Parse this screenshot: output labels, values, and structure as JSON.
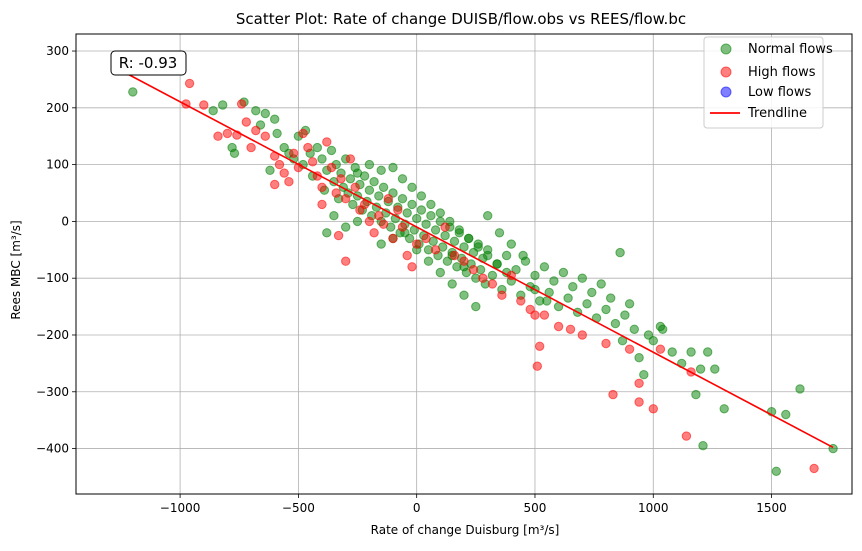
{
  "chart_data": {
    "type": "scatter",
    "title": "Scatter Plot: Rate of change DUISB/flow.obs vs REES/flow.bc",
    "xlabel": "Rate of change Duisburg [m³/s]",
    "ylabel": "Rees MBC [m³/s]",
    "xlim": [
      -1440,
      1840
    ],
    "ylim": [
      -480,
      330
    ],
    "xticks": [
      -1000,
      -500,
      0,
      500,
      1000,
      1500
    ],
    "xtick_labels": [
      "−1000",
      "−500",
      "0",
      "500",
      "1000",
      "1500"
    ],
    "yticks": [
      -400,
      -300,
      -200,
      -100,
      0,
      100,
      200,
      300
    ],
    "ytick_labels": [
      "−400",
      "−300",
      "−200",
      "−100",
      "0",
      "100",
      "200",
      "300"
    ],
    "grid": true,
    "legend_position": "top-right",
    "annotation": "R: -0.93",
    "colors": {
      "normal": "#008000",
      "high": "#ff0000",
      "low": "#0000ff",
      "trend": "#ff0000"
    },
    "series": [
      {
        "name": "Normal flows",
        "points": [
          [
            -1200,
            228
          ],
          [
            -860,
            195
          ],
          [
            -820,
            205
          ],
          [
            -780,
            130
          ],
          [
            -770,
            120
          ],
          [
            -730,
            210
          ],
          [
            -680,
            195
          ],
          [
            -660,
            170
          ],
          [
            -640,
            190
          ],
          [
            -620,
            90
          ],
          [
            -600,
            180
          ],
          [
            -590,
            155
          ],
          [
            -560,
            130
          ],
          [
            -540,
            120
          ],
          [
            -520,
            110
          ],
          [
            -500,
            150
          ],
          [
            -480,
            100
          ],
          [
            -470,
            160
          ],
          [
            -450,
            120
          ],
          [
            -440,
            80
          ],
          [
            -420,
            130
          ],
          [
            -400,
            110
          ],
          [
            -390,
            55
          ],
          [
            -380,
            90
          ],
          [
            -360,
            125
          ],
          [
            -350,
            70
          ],
          [
            -340,
            100
          ],
          [
            -330,
            40
          ],
          [
            -320,
            85
          ],
          [
            -310,
            60
          ],
          [
            -300,
            110
          ],
          [
            -290,
            50
          ],
          [
            -280,
            75
          ],
          [
            -270,
            30
          ],
          [
            -260,
            95
          ],
          [
            -250,
            45
          ],
          [
            -240,
            65
          ],
          [
            -230,
            20
          ],
          [
            -220,
            80
          ],
          [
            -210,
            35
          ],
          [
            -200,
            55
          ],
          [
            -190,
            10
          ],
          [
            -180,
            70
          ],
          [
            -170,
            25
          ],
          [
            -160,
            45
          ],
          [
            -150,
            0
          ],
          [
            -140,
            60
          ],
          [
            -130,
            15
          ],
          [
            -120,
            35
          ],
          [
            -110,
            -10
          ],
          [
            -100,
            50
          ],
          [
            -90,
            5
          ],
          [
            -80,
            25
          ],
          [
            -70,
            -20
          ],
          [
            -60,
            40
          ],
          [
            -50,
            -5
          ],
          [
            -40,
            15
          ],
          [
            -30,
            -30
          ],
          [
            -20,
            30
          ],
          [
            -10,
            -15
          ],
          [
            0,
            5
          ],
          [
            10,
            -40
          ],
          [
            20,
            20
          ],
          [
            30,
            -25
          ],
          [
            40,
            -5
          ],
          [
            50,
            -50
          ],
          [
            60,
            10
          ],
          [
            70,
            -35
          ],
          [
            80,
            -15
          ],
          [
            90,
            -60
          ],
          [
            100,
            0
          ],
          [
            110,
            -45
          ],
          [
            120,
            -25
          ],
          [
            130,
            -70
          ],
          [
            140,
            -10
          ],
          [
            150,
            -55
          ],
          [
            160,
            -35
          ],
          [
            170,
            -80
          ],
          [
            180,
            -20
          ],
          [
            190,
            -65
          ],
          [
            200,
            -45
          ],
          [
            210,
            -90
          ],
          [
            220,
            -30
          ],
          [
            230,
            -75
          ],
          [
            240,
            -55
          ],
          [
            250,
            -100
          ],
          [
            260,
            -40
          ],
          [
            270,
            -85
          ],
          [
            280,
            -65
          ],
          [
            290,
            -110
          ],
          [
            300,
            -50
          ],
          [
            320,
            -95
          ],
          [
            340,
            -75
          ],
          [
            360,
            -120
          ],
          [
            380,
            -60
          ],
          [
            400,
            -105
          ],
          [
            420,
            -85
          ],
          [
            440,
            -130
          ],
          [
            460,
            -70
          ],
          [
            480,
            -115
          ],
          [
            500,
            -95
          ],
          [
            520,
            -140
          ],
          [
            540,
            -80
          ],
          [
            560,
            -125
          ],
          [
            580,
            -105
          ],
          [
            600,
            -150
          ],
          [
            620,
            -90
          ],
          [
            640,
            -135
          ],
          [
            660,
            -115
          ],
          [
            680,
            -160
          ],
          [
            700,
            -100
          ],
          [
            720,
            -145
          ],
          [
            740,
            -125
          ],
          [
            760,
            -170
          ],
          [
            780,
            -110
          ],
          [
            800,
            -155
          ],
          [
            820,
            -135
          ],
          [
            840,
            -180
          ],
          [
            860,
            -55
          ],
          [
            880,
            -165
          ],
          [
            900,
            -145
          ],
          [
            920,
            -190
          ],
          [
            940,
            -240
          ],
          [
            960,
            -270
          ],
          [
            980,
            -200
          ],
          [
            1000,
            -210
          ],
          [
            1040,
            -190
          ],
          [
            1080,
            -230
          ],
          [
            1120,
            -250
          ],
          [
            1160,
            -230
          ],
          [
            1200,
            -260
          ],
          [
            1230,
            -230
          ],
          [
            1260,
            -260
          ],
          [
            1300,
            -330
          ],
          [
            1500,
            -335
          ],
          [
            1520,
            -440
          ],
          [
            1560,
            -340
          ],
          [
            1620,
            -295
          ],
          [
            1760,
            -400
          ],
          [
            1210,
            -395
          ],
          [
            1180,
            -305
          ],
          [
            1030,
            -185
          ],
          [
            870,
            -210
          ],
          [
            -100,
            95
          ],
          [
            -60,
            75
          ],
          [
            -20,
            60
          ],
          [
            20,
            45
          ],
          [
            60,
            30
          ],
          [
            100,
            15
          ],
          [
            140,
            0
          ],
          [
            180,
            -15
          ],
          [
            220,
            -30
          ],
          [
            260,
            -45
          ],
          [
            300,
            -60
          ],
          [
            340,
            -75
          ],
          [
            380,
            -90
          ],
          [
            -200,
            100
          ],
          [
            -150,
            90
          ],
          [
            -250,
            85
          ],
          [
            150,
            -110
          ],
          [
            200,
            -130
          ],
          [
            250,
            -150
          ],
          [
            -380,
            -20
          ],
          [
            -350,
            10
          ],
          [
            -300,
            -10
          ],
          [
            -250,
            0
          ],
          [
            350,
            -20
          ],
          [
            300,
            10
          ],
          [
            400,
            -40
          ],
          [
            450,
            -60
          ],
          [
            500,
            -120
          ],
          [
            550,
            -140
          ],
          [
            -150,
            -40
          ],
          [
            -100,
            -30
          ],
          [
            -50,
            -20
          ],
          [
            0,
            -50
          ],
          [
            50,
            -70
          ],
          [
            100,
            -90
          ],
          [
            150,
            -60
          ],
          [
            200,
            -80
          ]
        ]
      },
      {
        "name": "High flows",
        "points": [
          [
            -1220,
            265
          ],
          [
            -975,
            207
          ],
          [
            -960,
            243
          ],
          [
            -900,
            205
          ],
          [
            -840,
            150
          ],
          [
            -800,
            155
          ],
          [
            -760,
            152
          ],
          [
            -740,
            207
          ],
          [
            -720,
            175
          ],
          [
            -700,
            130
          ],
          [
            -680,
            160
          ],
          [
            -640,
            150
          ],
          [
            -600,
            115
          ],
          [
            -580,
            100
          ],
          [
            -560,
            85
          ],
          [
            -540,
            70
          ],
          [
            -520,
            120
          ],
          [
            -500,
            95
          ],
          [
            -480,
            155
          ],
          [
            -460,
            130
          ],
          [
            -440,
            105
          ],
          [
            -420,
            80
          ],
          [
            -400,
            60
          ],
          [
            -380,
            140
          ],
          [
            -360,
            95
          ],
          [
            -340,
            50
          ],
          [
            -320,
            75
          ],
          [
            -300,
            40
          ],
          [
            -280,
            110
          ],
          [
            -260,
            60
          ],
          [
            -240,
            20
          ],
          [
            -220,
            30
          ],
          [
            -200,
            0
          ],
          [
            -180,
            -20
          ],
          [
            -160,
            10
          ],
          [
            -140,
            -5
          ],
          [
            -120,
            40
          ],
          [
            -100,
            -30
          ],
          [
            -80,
            20
          ],
          [
            -60,
            -10
          ],
          [
            -300,
            -70
          ],
          [
            -330,
            -25
          ],
          [
            -400,
            30
          ],
          [
            -600,
            65
          ],
          [
            0,
            -40
          ],
          [
            40,
            -30
          ],
          [
            80,
            -50
          ],
          [
            120,
            -10
          ],
          [
            160,
            -60
          ],
          [
            200,
            -70
          ],
          [
            240,
            -85
          ],
          [
            280,
            -100
          ],
          [
            320,
            -110
          ],
          [
            360,
            -130
          ],
          [
            400,
            -95
          ],
          [
            440,
            -140
          ],
          [
            480,
            -155
          ],
          [
            500,
            -165
          ],
          [
            510,
            -255
          ],
          [
            520,
            -220
          ],
          [
            540,
            -165
          ],
          [
            600,
            -185
          ],
          [
            650,
            -190
          ],
          [
            700,
            -200
          ],
          [
            800,
            -215
          ],
          [
            830,
            -305
          ],
          [
            900,
            -225
          ],
          [
            940,
            -285
          ],
          [
            940,
            -318
          ],
          [
            1000,
            -330
          ],
          [
            1030,
            -225
          ],
          [
            1140,
            -378
          ],
          [
            1160,
            -265
          ],
          [
            1680,
            -435
          ],
          [
            -40,
            -60
          ],
          [
            -20,
            -80
          ]
        ]
      },
      {
        "name": "Low flows",
        "points": []
      },
      {
        "name": "Trendline",
        "line": [
          [
            -1260,
            268
          ],
          [
            1760,
            -398
          ]
        ]
      }
    ]
  }
}
